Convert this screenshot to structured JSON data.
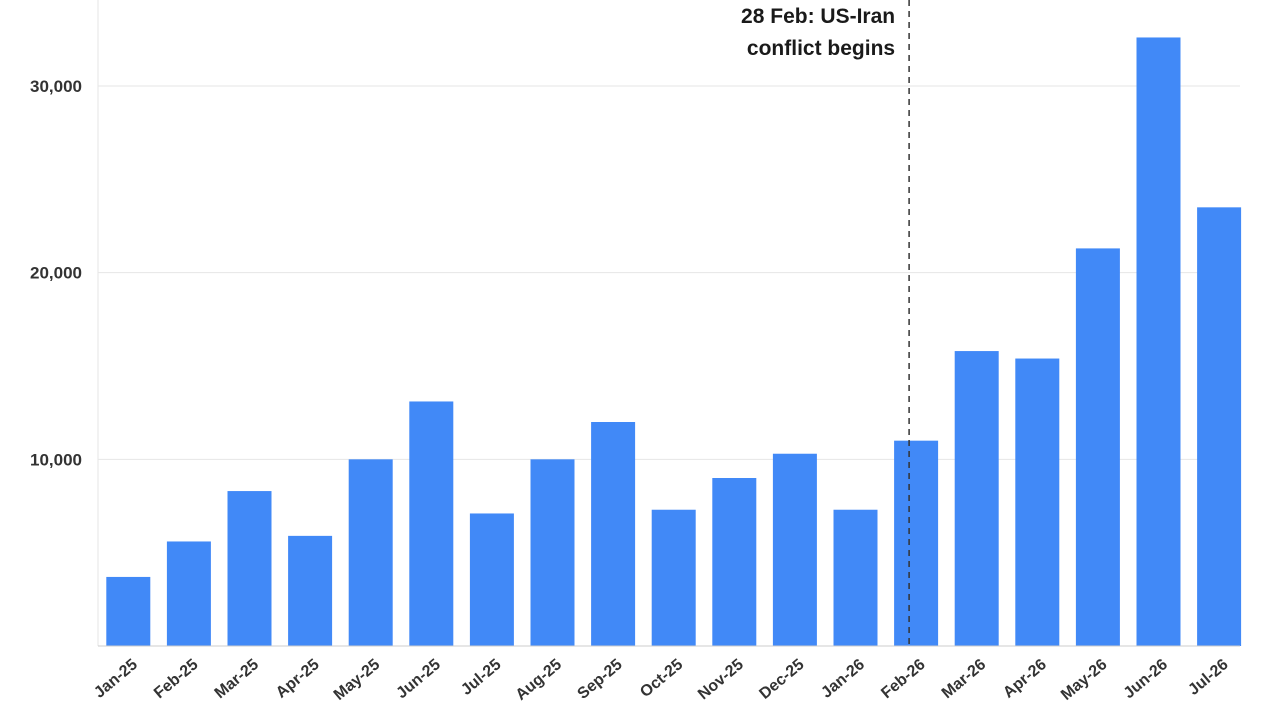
{
  "chart_data": {
    "type": "bar",
    "categories": [
      "Jan-25",
      "Feb-25",
      "Mar-25",
      "Apr-25",
      "May-25",
      "Jun-25",
      "Jul-25",
      "Aug-25",
      "Sep-25",
      "Oct-25",
      "Nov-25",
      "Dec-25",
      "Jan-26",
      "Feb-26",
      "Mar-26",
      "Apr-26",
      "May-26",
      "Jun-26",
      "Jul-26"
    ],
    "values": [
      3700,
      5600,
      8300,
      5900,
      10000,
      13100,
      7100,
      10000,
      12000,
      7300,
      9000,
      10300,
      7300,
      11000,
      15800,
      15400,
      21300,
      32600,
      23500
    ],
    "yticks": [
      10000,
      20000,
      30000
    ],
    "ytick_labels": [
      "10,000",
      "20,000",
      "30,000"
    ],
    "ylim": [
      0,
      34500
    ],
    "grid": true,
    "bar_color": "#4189f7",
    "annotation": {
      "line1": "28 Feb: US-Iran",
      "line2": "conflict begins",
      "position_between": [
        "Feb-26",
        "Mar-26"
      ]
    }
  }
}
